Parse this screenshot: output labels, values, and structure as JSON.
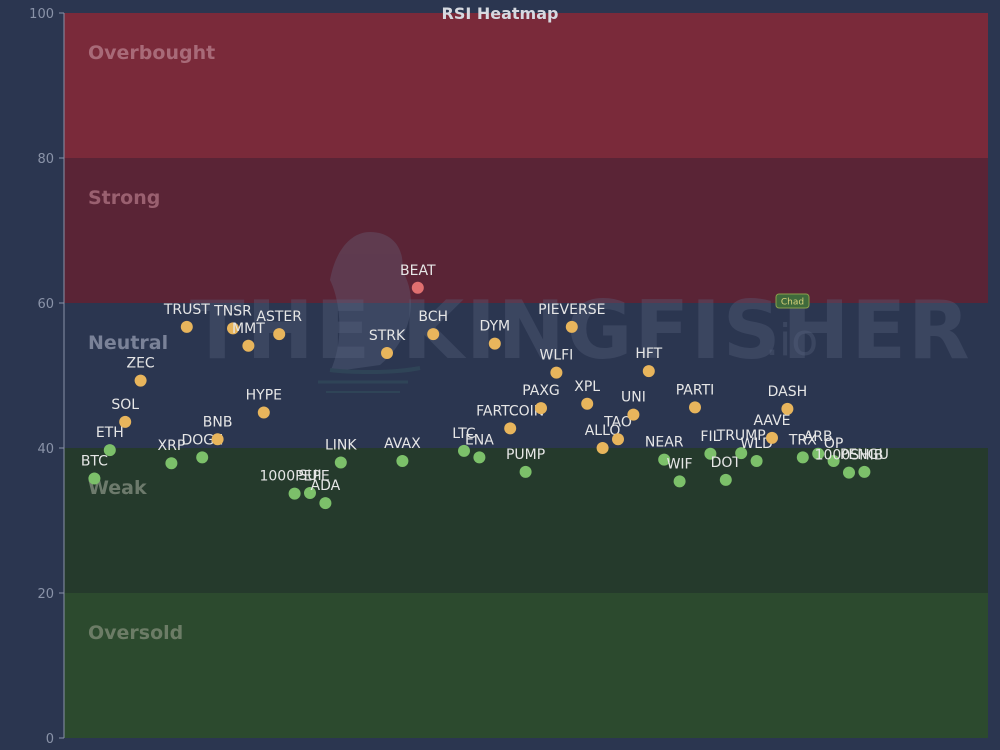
{
  "chart_data": {
    "type": "scatter",
    "title": "RSI Heatmap",
    "ylim": [
      0,
      100
    ],
    "yticks": [
      0,
      20,
      40,
      60,
      80,
      100
    ],
    "xlim": [
      0,
      60
    ],
    "zones": [
      {
        "name": "Overbought",
        "from": 80,
        "to": 100,
        "fill": "#7a2a3a",
        "label_color": "#a86a78"
      },
      {
        "name": "Strong",
        "from": 60,
        "to": 80,
        "fill": "#5a2436",
        "label_color": "#9a6070"
      },
      {
        "name": "Neutral",
        "from": 40,
        "to": 60,
        "fill": "#2b3650",
        "label_color": "#7a8298"
      },
      {
        "name": "Weak",
        "from": 20,
        "to": 40,
        "fill": "#253a2c",
        "label_color": "#6d7a6c"
      },
      {
        "name": "Oversold",
        "from": 0,
        "to": 20,
        "fill": "#2c4a2e",
        "label_color": "#6c7c66"
      }
    ],
    "points": [
      {
        "symbol": "BTC",
        "x": 1,
        "rsi": 35.8
      },
      {
        "symbol": "ETH",
        "x": 2,
        "rsi": 39.7
      },
      {
        "symbol": "SOL",
        "x": 3,
        "rsi": 43.6
      },
      {
        "symbol": "ZEC",
        "x": 4,
        "rsi": 49.3
      },
      {
        "symbol": "XRP",
        "x": 6,
        "rsi": 37.9
      },
      {
        "symbol": "TRUST",
        "x": 7,
        "rsi": 56.7
      },
      {
        "symbol": "DOGE",
        "x": 8,
        "rsi": 38.7
      },
      {
        "symbol": "BNB",
        "x": 9,
        "rsi": 41.2
      },
      {
        "symbol": "TNSR",
        "x": 10,
        "rsi": 56.5
      },
      {
        "symbol": "MMT",
        "x": 11,
        "rsi": 54.1
      },
      {
        "symbol": "HYPE",
        "x": 12,
        "rsi": 44.9
      },
      {
        "symbol": "ASTER",
        "x": 13,
        "rsi": 55.7
      },
      {
        "symbol": "1000PEPE",
        "x": 14,
        "rsi": 33.7
      },
      {
        "symbol": "SUI",
        "x": 15,
        "rsi": 33.8
      },
      {
        "symbol": "ADA",
        "x": 16,
        "rsi": 32.4
      },
      {
        "symbol": "LINK",
        "x": 17,
        "rsi": 38.0
      },
      {
        "symbol": "STRK",
        "x": 20,
        "rsi": 53.1
      },
      {
        "symbol": "AVAX",
        "x": 21,
        "rsi": 38.2
      },
      {
        "symbol": "BEAT",
        "x": 22,
        "rsi": 62.1
      },
      {
        "symbol": "BCH",
        "x": 23,
        "rsi": 55.7
      },
      {
        "symbol": "LTC",
        "x": 25,
        "rsi": 39.6
      },
      {
        "symbol": "ENA",
        "x": 26,
        "rsi": 38.7
      },
      {
        "symbol": "DYM",
        "x": 27,
        "rsi": 54.4
      },
      {
        "symbol": "FARTCOIN",
        "x": 28,
        "rsi": 42.7
      },
      {
        "symbol": "PUMP",
        "x": 29,
        "rsi": 36.7
      },
      {
        "symbol": "PAXG",
        "x": 30,
        "rsi": 45.5
      },
      {
        "symbol": "WLFI",
        "x": 31,
        "rsi": 50.4
      },
      {
        "symbol": "PIEVERSE",
        "x": 32,
        "rsi": 56.7
      },
      {
        "symbol": "XPL",
        "x": 33,
        "rsi": 46.1
      },
      {
        "symbol": "ALLO",
        "x": 34,
        "rsi": 40.0
      },
      {
        "symbol": "TAO",
        "x": 35,
        "rsi": 41.2
      },
      {
        "symbol": "UNI",
        "x": 36,
        "rsi": 44.6
      },
      {
        "symbol": "HFT",
        "x": 37,
        "rsi": 50.6
      },
      {
        "symbol": "NEAR",
        "x": 38,
        "rsi": 38.4
      },
      {
        "symbol": "WIF",
        "x": 39,
        "rsi": 35.4
      },
      {
        "symbol": "PARTI",
        "x": 40,
        "rsi": 45.6
      },
      {
        "symbol": "FIL",
        "x": 41,
        "rsi": 39.2
      },
      {
        "symbol": "DOT",
        "x": 42,
        "rsi": 35.6
      },
      {
        "symbol": "TRUMP",
        "x": 43,
        "rsi": 39.3
      },
      {
        "symbol": "WLD",
        "x": 44,
        "rsi": 38.2
      },
      {
        "symbol": "AAVE",
        "x": 45,
        "rsi": 41.4
      },
      {
        "symbol": "DASH",
        "x": 46,
        "rsi": 45.4
      },
      {
        "symbol": "TRX",
        "x": 47,
        "rsi": 38.7
      },
      {
        "symbol": "ARB",
        "x": 48,
        "rsi": 39.2
      },
      {
        "symbol": "OP",
        "x": 49,
        "rsi": 38.2
      },
      {
        "symbol": "1000SHIB",
        "x": 50,
        "rsi": 36.6
      },
      {
        "symbol": "PENGU",
        "x": 51,
        "rsi": 36.7
      }
    ],
    "point_colors": {
      "overbought": "#e07070",
      "neutral": "#e8b55c",
      "weak": "#7cc06a"
    }
  },
  "watermark": {
    "text": "THE KINGFISHER",
    "suffix": ".io"
  },
  "badge": {
    "text": "Chad"
  }
}
